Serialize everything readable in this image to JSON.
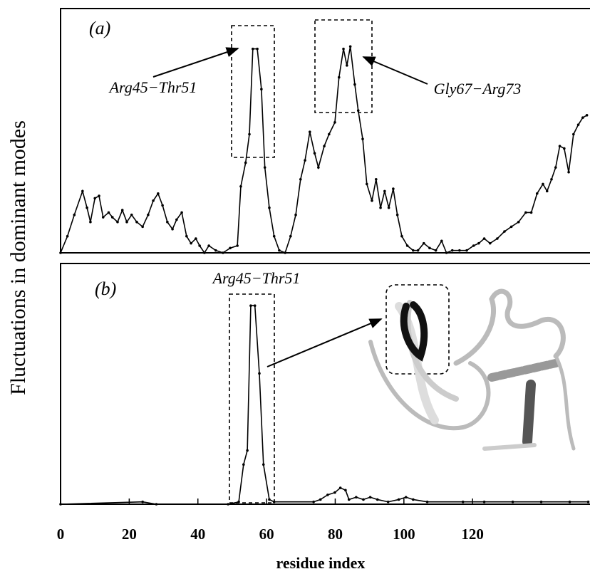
{
  "chart_data": [
    {
      "type": "line",
      "ylabel": "Fluctuations in dominant modes",
      "annotations": [
        "(a)",
        "Arg45−Thr51",
        "Gly67−Arg73"
      ],
      "xlim": [
        0,
        154
      ],
      "ylim": [
        0,
        1
      ],
      "color": "#000000",
      "x": [
        0,
        2,
        4,
        6.4,
        7.7,
        8.7,
        10,
        11.2,
        12.4,
        14,
        15.1,
        16.6,
        18,
        19.3,
        20.7,
        22.2,
        23.9,
        25.5,
        27,
        28.4,
        29.7,
        31.1,
        32.6,
        33.8,
        35.3,
        36.7,
        38,
        39.4,
        40.5,
        41.9,
        43.2,
        45.2,
        47.3,
        49.4,
        51.5,
        52.5,
        53.9,
        55,
        56,
        57.3,
        58.5,
        59.5,
        60.8,
        62.2,
        63.7,
        65.4,
        67,
        68.5,
        69.9,
        71.2,
        72.6,
        74,
        75.1,
        76.8,
        78.2,
        79.9,
        81.1,
        82.4,
        83.4,
        84.4,
        85.7,
        86.7,
        88,
        89.2,
        90.7,
        91.9,
        93.2,
        94.4,
        95.6,
        96.9,
        98.1,
        99.4,
        101,
        102.7,
        104.1,
        105.8,
        107.5,
        109.3,
        111,
        112.4,
        114.1,
        116.2,
        118.3,
        120.3,
        121.8,
        123.4,
        125.1,
        127.2,
        129.3,
        131.3,
        133.4,
        135.5,
        137.1,
        138.8,
        140.5,
        141.7,
        143,
        144.2,
        145.4,
        146.7,
        148,
        149.4,
        150.8,
        152.1,
        153.3
      ],
      "values": [
        0,
        0.07,
        0.16,
        0.26,
        0.19,
        0.13,
        0.23,
        0.24,
        0.15,
        0.17,
        0.15,
        0.13,
        0.18,
        0.13,
        0.16,
        0.13,
        0.11,
        0.16,
        0.22,
        0.25,
        0.2,
        0.13,
        0.1,
        0.14,
        0.17,
        0.07,
        0.04,
        0.06,
        0.03,
        0,
        0.03,
        0.01,
        0,
        0.02,
        0.03,
        0.28,
        0.38,
        0.5,
        0.86,
        0.86,
        0.69,
        0.36,
        0.19,
        0.07,
        0.01,
        0,
        0.07,
        0.16,
        0.31,
        0.39,
        0.51,
        0.42,
        0.36,
        0.45,
        0.5,
        0.55,
        0.74,
        0.86,
        0.79,
        0.87,
        0.71,
        0.6,
        0.48,
        0.29,
        0.22,
        0.31,
        0.19,
        0.26,
        0.19,
        0.27,
        0.16,
        0.07,
        0.03,
        0.01,
        0.01,
        0.04,
        0.02,
        0.01,
        0.05,
        0,
        0.01,
        0.01,
        0.01,
        0.03,
        0.04,
        0.06,
        0.04,
        0.06,
        0.09,
        0.11,
        0.13,
        0.17,
        0.17,
        0.25,
        0.29,
        0.26,
        0.31,
        0.36,
        0.45,
        0.44,
        0.34,
        0.5,
        0.54,
        0.57,
        0.58
      ]
    },
    {
      "type": "line",
      "xlabel": "residue index",
      "annotations": [
        "(b)",
        "Arg45−Thr51"
      ],
      "xlim": [
        0,
        154
      ],
      "ylim": [
        0,
        1
      ],
      "xticks": [
        0,
        20,
        40,
        60,
        80,
        100,
        120
      ],
      "color": "#000000",
      "x": [
        0,
        23.9,
        27.9,
        48.8,
        51.9,
        53.3,
        54.4,
        55.4,
        56.6,
        57.9,
        59.1,
        60.8,
        62.2,
        73.7,
        75.7,
        77.8,
        79.9,
        81.5,
        83,
        84,
        86.1,
        88.2,
        90.2,
        92.3,
        95.4,
        98.5,
        100.6,
        102.7,
        106.8,
        117.2,
        123.4,
        131.7,
        140,
        148.3,
        153.7
      ],
      "values": [
        0,
        0.01,
        0,
        0,
        0.01,
        0.17,
        0.23,
        0.85,
        0.85,
        0.56,
        0.17,
        0.02,
        0.01,
        0.01,
        0.02,
        0.04,
        0.05,
        0.07,
        0.06,
        0.02,
        0.03,
        0.02,
        0.03,
        0.02,
        0.01,
        0.02,
        0.03,
        0.02,
        0.01,
        0.01,
        0.01,
        0.01,
        0.01,
        0.01,
        0.01
      ]
    }
  ]
}
